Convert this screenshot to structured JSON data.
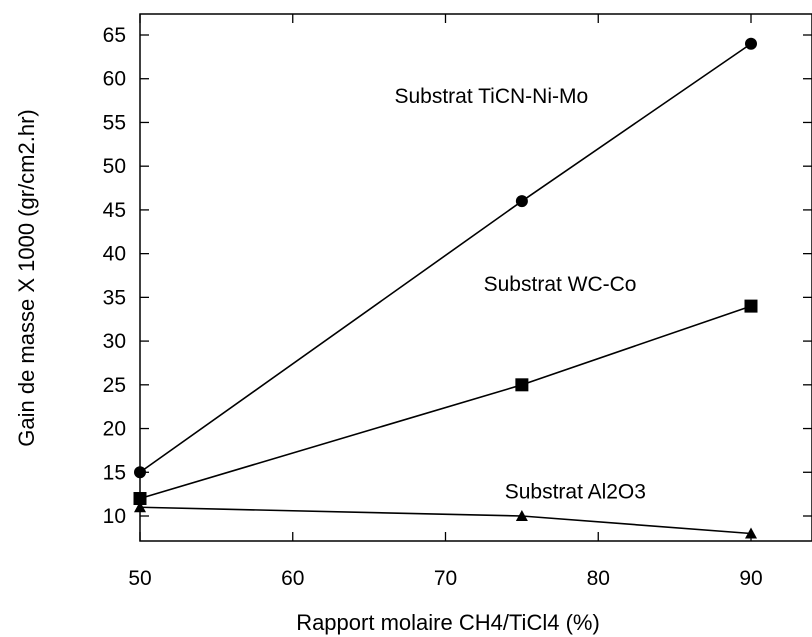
{
  "chart_data": {
    "type": "line",
    "xlabel": "Rapport molaire CH4/TiCl4 (%)",
    "ylabel": "Gain de masse X 1000 (gr/cm2.hr)",
    "xlim": [
      50,
      90
    ],
    "ylim": [
      8,
      66
    ],
    "xticks": [
      50,
      60,
      70,
      80,
      90
    ],
    "yticks": [
      10,
      15,
      20,
      25,
      30,
      35,
      40,
      45,
      50,
      55,
      60,
      65
    ],
    "grid": false,
    "legend": "none",
    "series": [
      {
        "marker": "circle",
        "color": "#000000",
        "x": [
          50,
          75,
          90
        ],
        "y": [
          15,
          46,
          64
        ]
      },
      {
        "marker": "square",
        "color": "#000000",
        "x": [
          50,
          75,
          90
        ],
        "y": [
          12,
          25,
          34
        ]
      },
      {
        "marker": "triangle",
        "color": "#000000",
        "x": [
          50,
          75,
          90
        ],
        "y": [
          11,
          10,
          8
        ]
      }
    ],
    "annotations": [
      {
        "text": "Substrat TiCN-Ni-Mo",
        "x": 73,
        "y": 58
      },
      {
        "text": "Substrat WC-Co",
        "x": 77.5,
        "y": 36.5
      },
      {
        "text": "Substrat Al2O3",
        "x": 78.5,
        "y": 12.8
      }
    ]
  }
}
